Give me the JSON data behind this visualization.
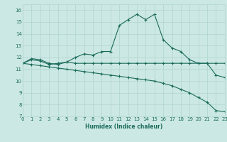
{
  "xlabel": "Humidex (Indice chaleur)",
  "bg_color": "#cce8e4",
  "grid_color": "#b0d5ce",
  "line_color": "#1a6b5a",
  "xlim": [
    0,
    23
  ],
  "ylim": [
    7,
    16.5
  ],
  "yticks": [
    7,
    8,
    9,
    10,
    11,
    12,
    13,
    14,
    15,
    16
  ],
  "xticks": [
    0,
    1,
    2,
    3,
    4,
    5,
    6,
    7,
    8,
    9,
    10,
    11,
    12,
    13,
    14,
    15,
    16,
    17,
    18,
    19,
    20,
    21,
    22,
    23
  ],
  "line1_x": [
    0,
    1,
    2,
    3,
    4,
    5,
    6,
    7,
    8,
    9,
    10,
    11,
    12,
    13,
    14,
    15,
    16,
    17,
    18,
    19,
    20,
    21,
    22,
    23
  ],
  "line1_y": [
    11.5,
    11.9,
    11.8,
    11.5,
    11.4,
    11.6,
    12.0,
    12.3,
    12.2,
    12.5,
    12.5,
    14.7,
    15.2,
    15.65,
    15.2,
    15.65,
    13.5,
    12.8,
    12.5,
    11.8,
    11.5,
    11.5,
    10.5,
    10.3
  ],
  "line2_x": [
    0,
    1,
    2,
    3,
    4,
    5,
    6,
    7,
    8,
    9,
    10,
    11,
    12,
    13,
    14,
    15,
    16,
    17,
    18,
    19,
    20,
    21,
    22,
    23
  ],
  "line2_y": [
    11.5,
    11.8,
    11.7,
    11.4,
    11.5,
    11.6,
    11.5,
    11.5,
    11.5,
    11.5,
    11.5,
    11.5,
    11.5,
    11.5,
    11.5,
    11.5,
    11.5,
    11.5,
    11.5,
    11.5,
    11.5,
    11.5,
    11.5,
    11.5
  ],
  "line3_x": [
    0,
    1,
    2,
    3,
    4,
    5,
    6,
    7,
    8,
    9,
    10,
    11,
    12,
    13,
    14,
    15,
    16,
    17,
    18,
    19,
    20,
    21,
    22,
    23
  ],
  "line3_y": [
    11.5,
    11.4,
    11.3,
    11.2,
    11.1,
    11.0,
    10.9,
    10.8,
    10.7,
    10.6,
    10.5,
    10.4,
    10.3,
    10.2,
    10.1,
    10.0,
    9.8,
    9.6,
    9.3,
    9.0,
    8.6,
    8.2,
    7.5,
    7.4
  ]
}
